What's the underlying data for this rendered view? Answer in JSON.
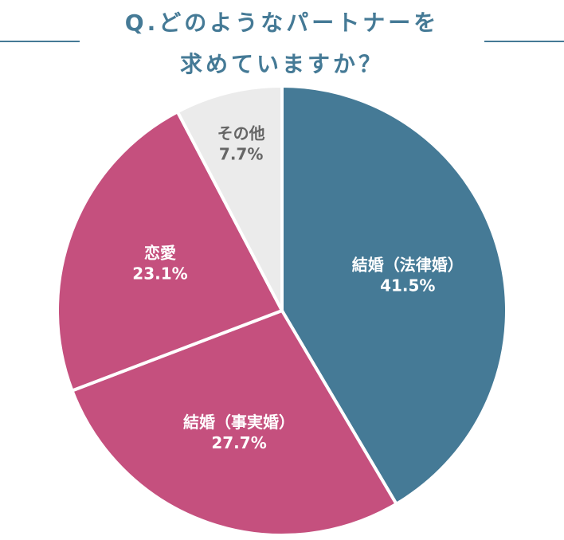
{
  "chart_data": {
    "type": "pie",
    "title": [
      "Q.どのようなパートナーを",
      "求めていますか？"
    ],
    "categories": [
      "結婚（法律婚）",
      "結婚（事実婚）",
      "恋愛",
      "その他"
    ],
    "values": [
      41.5,
      27.7,
      23.1,
      7.7
    ],
    "value_labels": [
      "41.5%",
      "27.7%",
      "23.1%",
      "7.7%"
    ],
    "colors": [
      "#457a96",
      "#c5507e",
      "#c5507e",
      "#ebebeb"
    ],
    "label_colors": [
      "#ffffff",
      "#ffffff",
      "#ffffff",
      "#666666"
    ]
  }
}
